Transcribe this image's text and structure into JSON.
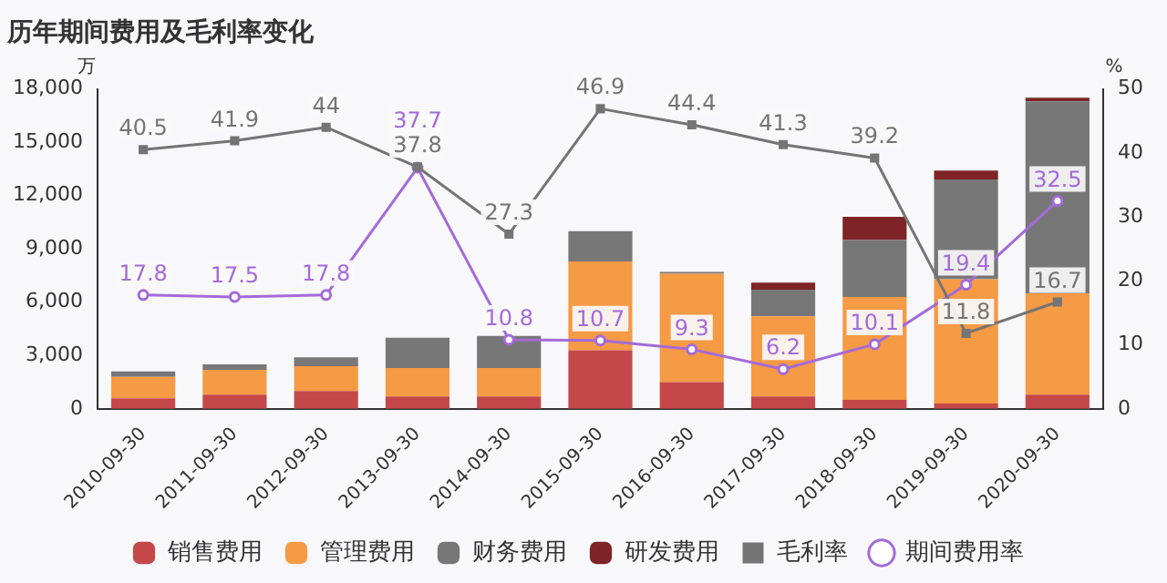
{
  "chart_data": {
    "type": "bar",
    "title": "历年期间费用及毛利率变化",
    "ylabel": "万",
    "y2label": "%",
    "categories": [
      "2010-09-30",
      "2011-09-30",
      "2012-09-30",
      "2013-09-30",
      "2014-09-30",
      "2015-09-30",
      "2016-09-30",
      "2017-09-30",
      "2018-09-30",
      "2019-09-30",
      "2020-09-30"
    ],
    "stacked": true,
    "grid": false,
    "legend": "bottom",
    "ylim": [
      0,
      18000
    ],
    "yticks": [
      0,
      {
        "value": 3000,
        "label": "3,000"
      },
      {
        "value": 6000,
        "label": "6,000"
      },
      {
        "value": 9000,
        "label": "9,000"
      },
      {
        "value": 12000,
        "label": "12,000"
      },
      {
        "value": 15000,
        "label": "15,000"
      },
      {
        "value": 18000,
        "label": "18,000"
      }
    ],
    "y2lim": [
      0,
      50
    ],
    "y2ticks": [
      0,
      10,
      20,
      30,
      40,
      50
    ],
    "series": [
      {
        "name": "销售费用",
        "color": "#c4484a",
        "values": [
          600,
          800,
          1000,
          700,
          700,
          3300,
          1500,
          700,
          500,
          300,
          800
        ]
      },
      {
        "name": "管理费用",
        "color": "#f59a45",
        "values": [
          1200,
          1400,
          1400,
          1600,
          1600,
          5000,
          6100,
          4500,
          5800,
          7000,
          5700
        ]
      },
      {
        "name": "财务费用",
        "color": "#777777",
        "values": [
          300,
          300,
          500,
          1700,
          1800,
          1700,
          100,
          1500,
          3200,
          5600,
          10800
        ]
      },
      {
        "name": "研发费用",
        "color": "#7e2426",
        "values": [
          0,
          0,
          0,
          0,
          0,
          0,
          0,
          400,
          1300,
          500,
          200
        ]
      },
      {
        "name": "毛利率",
        "type": "line",
        "axis": "y2",
        "color": "#747474",
        "marker": "square",
        "values": [
          40.5,
          41.9,
          44,
          37.8,
          27.3,
          46.9,
          44.4,
          41.3,
          39.2,
          11.8,
          16.7
        ],
        "value_labels": [
          "40.5",
          "41.9",
          "44",
          "37.8",
          "27.3",
          "46.9",
          "44.4",
          "41.3",
          "39.2",
          "11.8",
          "16.7"
        ]
      },
      {
        "name": "期间费用率",
        "type": "line",
        "axis": "y2",
        "color": "#a46ad9",
        "marker": "circle",
        "values": [
          17.8,
          17.5,
          17.8,
          37.7,
          10.8,
          10.7,
          9.3,
          6.2,
          10.1,
          19.4,
          32.5
        ],
        "value_labels": [
          "17.8",
          "17.5",
          "17.8",
          "37.7",
          "10.8",
          "10.7",
          "9.3",
          "6.2",
          "10.1",
          "19.4",
          "32.5"
        ]
      }
    ]
  }
}
